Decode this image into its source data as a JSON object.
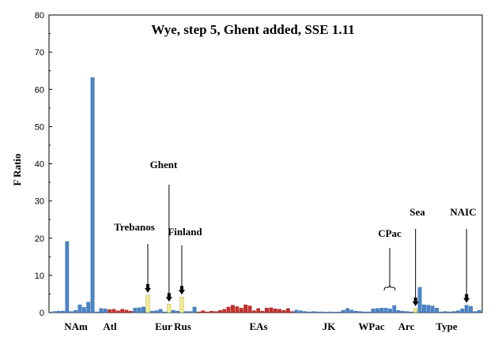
{
  "chart_data": {
    "type": "bar",
    "title": "Wye, step 5, Ghent added, SSE 1.11",
    "ylabel": "F Ratio",
    "xlabel": "",
    "ylim": [
      0,
      80
    ],
    "yticks": [
      0,
      10,
      20,
      30,
      40,
      50,
      60,
      70,
      80
    ],
    "grid": false,
    "legend": "none",
    "colors": {
      "blue": "#4a86c8",
      "red": "#c8302c",
      "yellow": "#f2ef8a"
    },
    "groups": [
      "NAm",
      "Atl",
      "Eur",
      "Rus",
      "EAs",
      "JK",
      "WPac",
      "Arc",
      "Type"
    ],
    "annotations": [
      {
        "text": "Trebanos",
        "target": "Trebanos"
      },
      {
        "text": "Ghent",
        "target": "Ghent"
      },
      {
        "text": "Finland",
        "target": "Finland"
      },
      {
        "text": "CPac",
        "target": "CPac"
      },
      {
        "text": "Sea",
        "target": "Sea"
      },
      {
        "text": "NAIC",
        "target": "NAIC"
      }
    ],
    "bars": [
      {
        "id": "b1",
        "color": "blue",
        "value": 0.3
      },
      {
        "id": "b2",
        "color": "blue",
        "value": 0.4
      },
      {
        "id": "b3",
        "color": "blue",
        "value": 0.4
      },
      {
        "id": "b4",
        "color": "blue",
        "value": 19.1
      },
      {
        "id": "b5",
        "color": "blue",
        "value": 0.3
      },
      {
        "id": "b6",
        "color": "blue",
        "value": 0.6
      },
      {
        "id": "b7",
        "color": "blue",
        "value": 2.1
      },
      {
        "id": "b8",
        "color": "blue",
        "value": 1.4
      },
      {
        "id": "b9",
        "color": "blue",
        "value": 2.8
      },
      {
        "id": "b10",
        "color": "blue",
        "value": 63.2
      },
      {
        "id": "b11",
        "color": "blue",
        "value": 0.2
      },
      {
        "id": "b12",
        "color": "blue",
        "value": 1.1
      },
      {
        "id": "b13",
        "color": "blue",
        "value": 1.0
      },
      {
        "id": "b14",
        "color": "red",
        "value": 0.8
      },
      {
        "id": "b15",
        "color": "red",
        "value": 0.9
      },
      {
        "id": "b16",
        "color": "red",
        "value": 0.5
      },
      {
        "id": "b17",
        "color": "red",
        "value": 0.9
      },
      {
        "id": "b18",
        "color": "red",
        "value": 0.7
      },
      {
        "id": "b19",
        "color": "red",
        "value": 0.4
      },
      {
        "id": "b20",
        "color": "blue",
        "value": 1.2
      },
      {
        "id": "b21",
        "color": "blue",
        "value": 1.3
      },
      {
        "id": "b22",
        "color": "blue",
        "value": 1.5
      },
      {
        "id": "Trebanos",
        "color": "yellow",
        "value": 4.7
      },
      {
        "id": "b24",
        "color": "blue",
        "value": 0.4
      },
      {
        "id": "b25",
        "color": "blue",
        "value": 0.5
      },
      {
        "id": "b26",
        "color": "blue",
        "value": 0.9
      },
      {
        "id": "b27",
        "color": "blue",
        "value": 0.2
      },
      {
        "id": "Ghent",
        "color": "yellow",
        "value": 2.3
      },
      {
        "id": "b29",
        "color": "blue",
        "value": 0.6
      },
      {
        "id": "b30",
        "color": "blue",
        "value": 0.4
      },
      {
        "id": "Finland",
        "color": "yellow",
        "value": 4.2
      },
      {
        "id": "b32",
        "color": "blue",
        "value": 0.3
      },
      {
        "id": "b33",
        "color": "blue",
        "value": 0.3
      },
      {
        "id": "b34",
        "color": "blue",
        "value": 1.5
      },
      {
        "id": "b35",
        "color": "red",
        "value": 0.2
      },
      {
        "id": "b36",
        "color": "red",
        "value": 0.5
      },
      {
        "id": "b37",
        "color": "red",
        "value": 0.2
      },
      {
        "id": "b38",
        "color": "red",
        "value": 0.4
      },
      {
        "id": "b39",
        "color": "red",
        "value": 0.3
      },
      {
        "id": "b40",
        "color": "red",
        "value": 0.6
      },
      {
        "id": "b41",
        "color": "red",
        "value": 0.9
      },
      {
        "id": "b42",
        "color": "red",
        "value": 1.5
      },
      {
        "id": "b43",
        "color": "red",
        "value": 2.0
      },
      {
        "id": "b44",
        "color": "red",
        "value": 1.6
      },
      {
        "id": "b45",
        "color": "red",
        "value": 1.2
      },
      {
        "id": "b46",
        "color": "red",
        "value": 2.1
      },
      {
        "id": "b47",
        "color": "red",
        "value": 1.8
      },
      {
        "id": "b48",
        "color": "red",
        "value": 0.5
      },
      {
        "id": "b49",
        "color": "red",
        "value": 1.1
      },
      {
        "id": "b50",
        "color": "red",
        "value": 0.4
      },
      {
        "id": "b51",
        "color": "red",
        "value": 1.2
      },
      {
        "id": "b52",
        "color": "red",
        "value": 1.3
      },
      {
        "id": "b53",
        "color": "red",
        "value": 1.0
      },
      {
        "id": "b54",
        "color": "red",
        "value": 0.9
      },
      {
        "id": "b55",
        "color": "red",
        "value": 0.6
      },
      {
        "id": "b56",
        "color": "red",
        "value": 1.1
      },
      {
        "id": "b57",
        "color": "red",
        "value": 0.3
      },
      {
        "id": "b58",
        "color": "blue",
        "value": 0.7
      },
      {
        "id": "b59",
        "color": "blue",
        "value": 0.5
      },
      {
        "id": "b60",
        "color": "blue",
        "value": 0.3
      },
      {
        "id": "b61",
        "color": "blue",
        "value": 0.2
      },
      {
        "id": "b62",
        "color": "blue",
        "value": 0.3
      },
      {
        "id": "b63",
        "color": "blue",
        "value": 0.2
      },
      {
        "id": "b64",
        "color": "blue",
        "value": 0.2
      },
      {
        "id": "b65",
        "color": "blue",
        "value": 0.1
      },
      {
        "id": "b66",
        "color": "blue",
        "value": 0.2
      },
      {
        "id": "b67",
        "color": "blue",
        "value": 0.1
      },
      {
        "id": "b68",
        "color": "blue",
        "value": 0.2
      },
      {
        "id": "b69",
        "color": "blue",
        "value": 0.6
      },
      {
        "id": "b70",
        "color": "blue",
        "value": 1.1
      },
      {
        "id": "b71",
        "color": "blue",
        "value": 0.7
      },
      {
        "id": "b72",
        "color": "blue",
        "value": 0.4
      },
      {
        "id": "b73",
        "color": "blue",
        "value": 0.3
      },
      {
        "id": "b74",
        "color": "blue",
        "value": 0.2
      },
      {
        "id": "b75",
        "color": "blue",
        "value": 0.2
      },
      {
        "id": "b76",
        "color": "blue",
        "value": 1.0
      },
      {
        "id": "b77",
        "color": "blue",
        "value": 1.1
      },
      {
        "id": "b78",
        "color": "blue",
        "value": 1.2
      },
      {
        "id": "b79",
        "color": "blue",
        "value": 1.2
      },
      {
        "id": "b80",
        "color": "blue",
        "value": 1.0
      },
      {
        "id": "b81",
        "color": "blue",
        "value": 1.9
      },
      {
        "id": "b82",
        "color": "blue",
        "value": 0.6
      },
      {
        "id": "b83",
        "color": "blue",
        "value": 0.4
      },
      {
        "id": "b84",
        "color": "blue",
        "value": 0.3
      },
      {
        "id": "b85",
        "color": "blue",
        "value": 0.2
      },
      {
        "id": "Sea",
        "color": "yellow",
        "value": 1.1
      },
      {
        "id": "b87",
        "color": "blue",
        "value": 6.8
      },
      {
        "id": "b88",
        "color": "blue",
        "value": 2.1
      },
      {
        "id": "b89",
        "color": "blue",
        "value": 2.0
      },
      {
        "id": "b90",
        "color": "blue",
        "value": 1.8
      },
      {
        "id": "b91",
        "color": "blue",
        "value": 1.2
      },
      {
        "id": "b92",
        "color": "blue",
        "value": 0.2
      },
      {
        "id": "b93",
        "color": "blue",
        "value": 0.3
      },
      {
        "id": "b94",
        "color": "blue",
        "value": 0.2
      },
      {
        "id": "b95",
        "color": "blue",
        "value": 0.3
      },
      {
        "id": "b96",
        "color": "blue",
        "value": 0.5
      },
      {
        "id": "b97",
        "color": "blue",
        "value": 1.0
      },
      {
        "id": "NAIC",
        "color": "blue",
        "value": 2.0
      },
      {
        "id": "b99",
        "color": "blue",
        "value": 1.7
      },
      {
        "id": "b100",
        "color": "blue",
        "value": 0.3
      },
      {
        "id": "b101",
        "color": "blue",
        "value": 0.6
      }
    ]
  }
}
